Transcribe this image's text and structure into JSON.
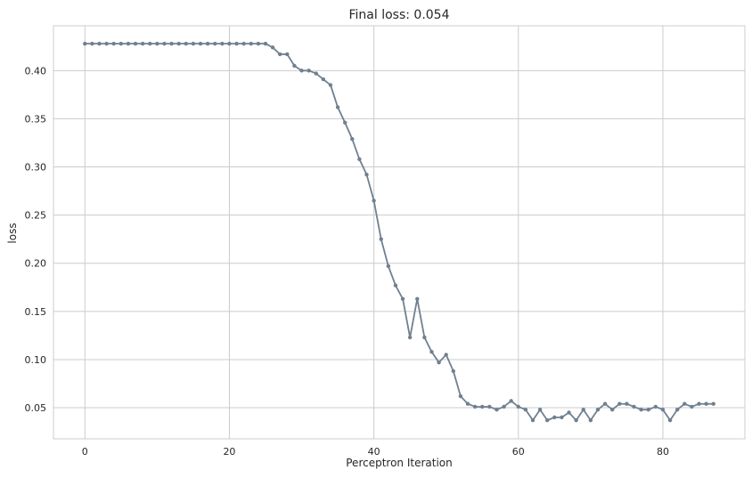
{
  "chart_data": {
    "type": "line",
    "title": "Final loss: 0.054",
    "xlabel": "Perceptron Iteration",
    "ylabel": "loss",
    "xlim": [
      -4.35,
      91.35
    ],
    "ylim": [
      0.0177,
      0.4465
    ],
    "xticks": [
      0,
      20,
      40,
      60,
      80
    ],
    "yticks": [
      0.05,
      0.1,
      0.15,
      0.2,
      0.25,
      0.3,
      0.35,
      0.4
    ],
    "xtick_labels": [
      "0",
      "20",
      "40",
      "60",
      "80"
    ],
    "ytick_labels": [
      "0.05",
      "0.10",
      "0.15",
      "0.20",
      "0.25",
      "0.30",
      "0.35",
      "0.40"
    ],
    "grid": true,
    "series": [
      {
        "name": "loss",
        "color": "#708090",
        "marker": "circle",
        "x": [
          0,
          1,
          2,
          3,
          4,
          5,
          6,
          7,
          8,
          9,
          10,
          11,
          12,
          13,
          14,
          15,
          16,
          17,
          18,
          19,
          20,
          21,
          22,
          23,
          24,
          25,
          26,
          27,
          28,
          29,
          30,
          31,
          32,
          33,
          34,
          35,
          36,
          37,
          38,
          39,
          40,
          41,
          42,
          43,
          44,
          45,
          46,
          47,
          48,
          49,
          50,
          51,
          52,
          53,
          54,
          55,
          56,
          57,
          58,
          59,
          60,
          61,
          62,
          63,
          64,
          65,
          66,
          67,
          68,
          69,
          70,
          71,
          72,
          73,
          74,
          75,
          76,
          77,
          78,
          79,
          80,
          81,
          82,
          83,
          84,
          85,
          86,
          87
        ],
        "values": [
          0.428,
          0.428,
          0.428,
          0.428,
          0.428,
          0.428,
          0.428,
          0.428,
          0.428,
          0.428,
          0.428,
          0.428,
          0.428,
          0.428,
          0.428,
          0.428,
          0.428,
          0.428,
          0.428,
          0.428,
          0.428,
          0.428,
          0.428,
          0.428,
          0.428,
          0.428,
          0.424,
          0.417,
          0.417,
          0.405,
          0.4,
          0.4,
          0.397,
          0.391,
          0.385,
          0.362,
          0.346,
          0.329,
          0.308,
          0.292,
          0.265,
          0.225,
          0.197,
          0.177,
          0.163,
          0.123,
          0.163,
          0.123,
          0.108,
          0.097,
          0.105,
          0.088,
          0.062,
          0.054,
          0.051,
          0.051,
          0.051,
          0.048,
          0.051,
          0.057,
          0.051,
          0.048,
          0.037,
          0.048,
          0.037,
          0.04,
          0.04,
          0.045,
          0.037,
          0.048,
          0.037,
          0.048,
          0.054,
          0.048,
          0.054,
          0.054,
          0.051,
          0.048,
          0.048,
          0.051,
          0.048,
          0.037,
          0.048,
          0.054,
          0.051,
          0.054,
          0.054,
          0.054
        ]
      }
    ]
  }
}
